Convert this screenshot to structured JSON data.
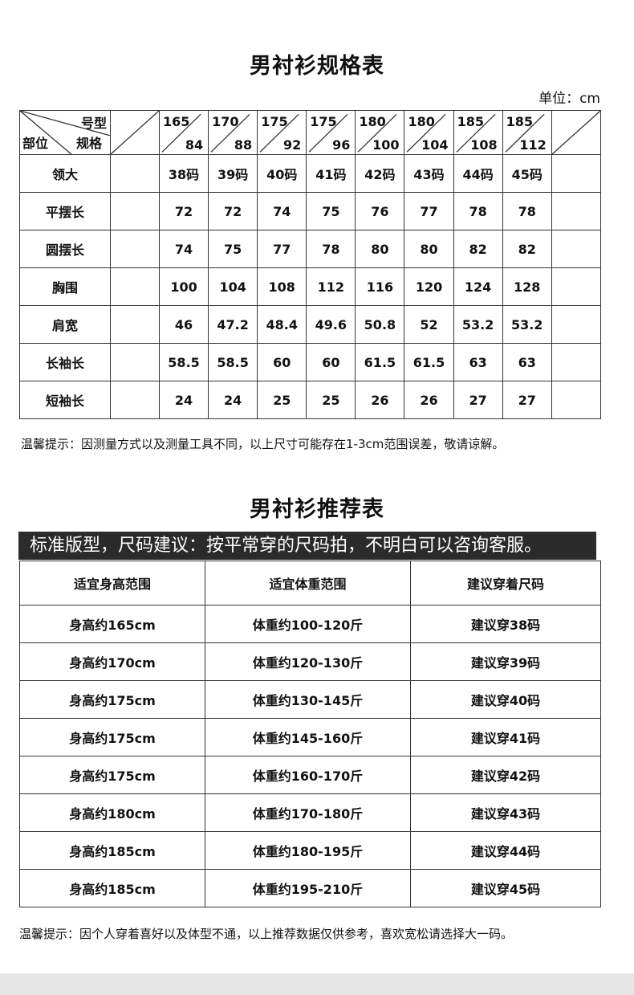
{
  "spec_table": {
    "title": "男衬衫规格表",
    "unit": "单位：cm",
    "corner": {
      "top": "号型",
      "mid": "规格",
      "left": "部位"
    },
    "sizes": [
      {
        "height": "165",
        "chest": "84"
      },
      {
        "height": "170",
        "chest": "88"
      },
      {
        "height": "175",
        "chest": "92"
      },
      {
        "height": "175",
        "chest": "96"
      },
      {
        "height": "180",
        "chest": "100"
      },
      {
        "height": "180",
        "chest": "104"
      },
      {
        "height": "185",
        "chest": "108"
      },
      {
        "height": "185",
        "chest": "112"
      }
    ],
    "rows": [
      {
        "label": "领大",
        "values": [
          "38码",
          "39码",
          "40码",
          "41码",
          "42码",
          "43码",
          "44码",
          "45码"
        ]
      },
      {
        "label": "平摆长",
        "values": [
          "72",
          "72",
          "74",
          "75",
          "76",
          "77",
          "78",
          "78"
        ]
      },
      {
        "label": "圆摆长",
        "values": [
          "74",
          "75",
          "77",
          "78",
          "80",
          "80",
          "82",
          "82"
        ]
      },
      {
        "label": "胸围",
        "values": [
          "100",
          "104",
          "108",
          "112",
          "116",
          "120",
          "124",
          "128"
        ]
      },
      {
        "label": "肩宽",
        "values": [
          "46",
          "47.2",
          "48.4",
          "49.6",
          "50.8",
          "52",
          "53.2",
          "53.2"
        ]
      },
      {
        "label": "长袖长",
        "values": [
          "58.5",
          "58.5",
          "60",
          "60",
          "61.5",
          "61.5",
          "63",
          "63"
        ]
      },
      {
        "label": "短袖长",
        "values": [
          "24",
          "24",
          "25",
          "25",
          "26",
          "26",
          "27",
          "27"
        ]
      }
    ],
    "note": "温馨提示：因测量方式以及测量工具不同，以上尺寸可能存在1-3cm范围误差，敬请谅解。"
  },
  "rec_table": {
    "title": "男衬衫推荐表",
    "banner": "标准版型，尺码建议：按平常穿的尺码拍，不明白可以咨询客服。",
    "headers": [
      "适宜身高范围",
      "适宜体重范围",
      "建议穿着尺码"
    ],
    "rows": [
      [
        "身高约165cm",
        "体重约100-120斤",
        "建议穿38码"
      ],
      [
        "身高约170cm",
        "体重约120-130斤",
        "建议穿39码"
      ],
      [
        "身高约175cm",
        "体重约130-145斤",
        "建议穿40码"
      ],
      [
        "身高约175cm",
        "体重约145-160斤",
        "建议穿41码"
      ],
      [
        "身高约175cm",
        "体重约160-170斤",
        "建议穿42码"
      ],
      [
        "身高约180cm",
        "体重约170-180斤",
        "建议穿43码"
      ],
      [
        "身高约185cm",
        "体重约180-195斤",
        "建议穿44码"
      ],
      [
        "身高约185cm",
        "体重约195-210斤",
        "建议穿45码"
      ]
    ],
    "note": "温馨提示：因个人穿着喜好以及体型不通，以上推荐数据仅供参考，喜欢宽松请选择大一码。"
  }
}
